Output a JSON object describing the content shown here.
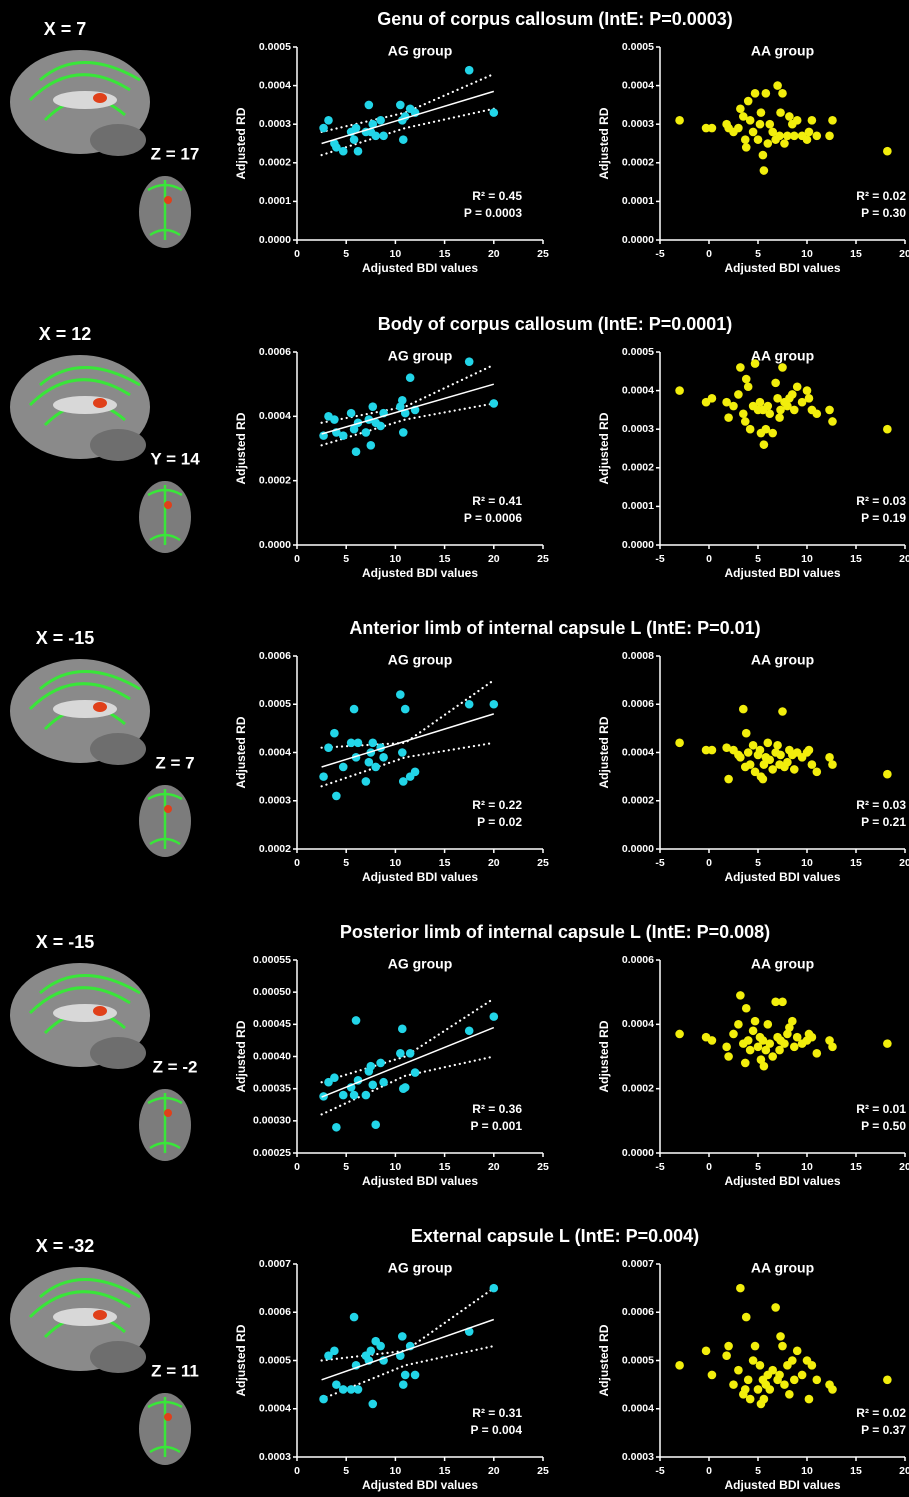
{
  "figure": {
    "rows": [
      {
        "title": "Genu of corpus callosum (IntE: P=0.0003)",
        "slices": [
          "X = 7",
          "Z = 17"
        ]
      },
      {
        "title": "Body of corpus callosum (IntE: P=0.0001)",
        "slices": [
          "X = 12",
          "Y = 14"
        ]
      },
      {
        "title": "Anterior limb of internal capsule L (IntE: P=0.01)",
        "slices": [
          "X = -15",
          "Z = 7"
        ]
      },
      {
        "title": "Posterior limb of internal capsule L (IntE: P=0.008)",
        "slices": [
          "X = -15",
          "Z = -2"
        ]
      },
      {
        "title": "External capsule L (IntE: P=0.004)",
        "slices": [
          "X = -32",
          "Z = 11"
        ]
      }
    ]
  },
  "chart_data": [
    {
      "type": "scatter",
      "title": "AG group",
      "x_label": "Adjusted BDI values",
      "y_label": "Adjusted RD",
      "color": "#22d5e8",
      "x": [
        2.7,
        3.2,
        3.8,
        4,
        4.7,
        5.5,
        5.8,
        6,
        6.2,
        7,
        7.3,
        7.5,
        7.7,
        8,
        8.5,
        8.8,
        10.5,
        10.7,
        10.8,
        11,
        11.5,
        12,
        17.5,
        20
      ],
      "values": [
        0.00029,
        0.00031,
        0.00025,
        0.00024,
        0.00023,
        0.00028,
        0.00026,
        0.00029,
        0.00023,
        0.00028,
        0.00035,
        0.00028,
        0.0003,
        0.00027,
        0.00031,
        0.00027,
        0.00035,
        0.00031,
        0.00026,
        0.00032,
        0.00034,
        0.00033,
        0.00044,
        0.00033
      ],
      "fit": {
        "x": [
          2.5,
          20
        ],
        "y": [
          0.00025,
          0.000385
        ]
      },
      "ci_upper": {
        "x": [
          2.5,
          11,
          20
        ],
        "y": [
          0.00028,
          0.00033,
          0.00043
        ]
      },
      "ci_lower": {
        "x": [
          2.5,
          11,
          20
        ],
        "y": [
          0.00022,
          0.00029,
          0.00034
        ]
      },
      "annotations": [
        "R² = 0.45",
        "P = 0.0003"
      ],
      "xlim": [
        0,
        25
      ],
      "xticks": [
        0,
        5,
        10,
        15,
        20,
        25
      ],
      "ylim": [
        0,
        0.0005
      ],
      "yticks": [
        {
          "value": 0,
          "label": "0.0000"
        },
        0.0001,
        0.0002,
        0.0003,
        0.0004,
        0.0005
      ]
    },
    {
      "type": "scatter",
      "title": "AA group",
      "x_label": "Adjusted BDI values",
      "y_label": "Adjusted RD",
      "color": "#f2ee0c",
      "x": [
        -3,
        -0.3,
        0.3,
        1.8,
        2,
        2.5,
        3,
        3.2,
        3.5,
        3.7,
        3.8,
        4,
        4.2,
        4.5,
        4.7,
        5,
        5.2,
        5.3,
        5.5,
        5.6,
        5.8,
        6,
        6.2,
        6.5,
        6.8,
        7,
        7.2,
        7.3,
        7.5,
        7.7,
        8,
        8.2,
        8.5,
        8.7,
        9,
        9.5,
        10,
        10.2,
        10.5,
        11,
        12.3,
        12.6,
        18.2
      ],
      "values": [
        0.00031,
        0.00029,
        0.00029,
        0.0003,
        0.00029,
        0.00028,
        0.00029,
        0.00034,
        0.00032,
        0.00026,
        0.00024,
        0.00036,
        0.00031,
        0.00028,
        0.00038,
        0.00026,
        0.0003,
        0.00033,
        0.00022,
        0.00018,
        0.00038,
        0.00025,
        0.0003,
        0.00028,
        0.00026,
        0.0004,
        0.00027,
        0.00033,
        0.00038,
        0.00025,
        0.00027,
        0.00032,
        0.0003,
        0.00027,
        0.00031,
        0.00027,
        0.00026,
        0.00028,
        0.00031,
        0.00027,
        0.00027,
        0.00031,
        0.00023
      ],
      "annotations": [
        "R² = 0.02",
        "P = 0.30"
      ],
      "xlim": [
        -5,
        20
      ],
      "xticks": [
        -5,
        0,
        5,
        10,
        15,
        20
      ],
      "ylim": [
        0,
        0.0005
      ],
      "yticks": [
        {
          "value": 0,
          "label": "0.0000"
        },
        0.0001,
        0.0002,
        0.0003,
        0.0004,
        0.0005
      ]
    },
    {
      "type": "scatter",
      "title": "AG group",
      "x_label": "Adjusted BDI values",
      "y_label": "Adjusted RD",
      "color": "#22d5e8",
      "x": [
        2.7,
        3.2,
        3.8,
        4,
        4.7,
        5.5,
        5.8,
        6,
        6.2,
        7,
        7.3,
        7.5,
        7.7,
        8,
        8.5,
        8.8,
        10.5,
        10.7,
        10.8,
        11,
        11.5,
        12,
        17.5,
        20
      ],
      "values": [
        0.00034,
        0.0004,
        0.00039,
        0.00035,
        0.00034,
        0.00041,
        0.00036,
        0.00029,
        0.00038,
        0.00035,
        0.00039,
        0.00031,
        0.00043,
        0.00038,
        0.00037,
        0.00041,
        0.00043,
        0.00045,
        0.00035,
        0.00041,
        0.00052,
        0.00042,
        0.00057,
        0.00044
      ],
      "fit": {
        "x": [
          2.5,
          20
        ],
        "y": [
          0.000345,
          0.0005
        ]
      },
      "ci_upper": {
        "x": [
          2.5,
          11,
          20
        ],
        "y": [
          0.00038,
          0.00043,
          0.00056
        ]
      },
      "ci_lower": {
        "x": [
          2.5,
          11,
          20
        ],
        "y": [
          0.00031,
          0.00039,
          0.00044
        ]
      },
      "annotations": [
        "R² = 0.41",
        "P = 0.0006"
      ],
      "xlim": [
        0,
        25
      ],
      "xticks": [
        0,
        5,
        10,
        15,
        20,
        25
      ],
      "ylim": [
        0,
        0.0006
      ],
      "yticks": [
        {
          "value": 0,
          "label": "0.0000"
        },
        0.0002,
        0.0004,
        0.0006
      ]
    },
    {
      "type": "scatter",
      "title": "AA group",
      "x_label": "Adjusted BDI values",
      "y_label": "Adjusted RD",
      "color": "#f2ee0c",
      "x": [
        -3,
        -0.3,
        0.3,
        1.8,
        2,
        2.5,
        3,
        3.2,
        3.5,
        3.7,
        3.8,
        4,
        4.2,
        4.5,
        4.7,
        5,
        5.2,
        5.3,
        5.5,
        5.6,
        5.8,
        6,
        6.2,
        6.5,
        6.8,
        7,
        7.2,
        7.3,
        7.5,
        7.7,
        8,
        8.2,
        8.5,
        8.7,
        9,
        9.5,
        10,
        10.2,
        10.5,
        11,
        12.3,
        12.6,
        18.2
      ],
      "values": [
        0.0004,
        0.00037,
        0.00038,
        0.00037,
        0.00033,
        0.00036,
        0.00039,
        0.00046,
        0.00034,
        0.00032,
        0.00043,
        0.00041,
        0.0003,
        0.00036,
        0.00047,
        0.00035,
        0.00037,
        0.00029,
        0.00035,
        0.00026,
        0.0003,
        0.00036,
        0.00034,
        0.00029,
        0.00042,
        0.00038,
        0.00033,
        0.00035,
        0.00046,
        0.00037,
        0.00036,
        0.00038,
        0.00039,
        0.00035,
        0.00041,
        0.00037,
        0.0004,
        0.00038,
        0.00035,
        0.00034,
        0.00035,
        0.00032,
        0.0003
      ],
      "annotations": [
        "R² = 0.03",
        "P = 0.19"
      ],
      "xlim": [
        -5,
        20
      ],
      "xticks": [
        -5,
        0,
        5,
        10,
        15,
        20
      ],
      "ylim": [
        0,
        0.0005
      ],
      "yticks": [
        {
          "value": 0,
          "label": "0.0000"
        },
        0.0001,
        0.0002,
        0.0003,
        0.0004,
        0.0005
      ]
    },
    {
      "type": "scatter",
      "title": "AG group",
      "x_label": "Adjusted BDI values",
      "y_label": "Adjusted RD",
      "color": "#22d5e8",
      "x": [
        2.7,
        3.2,
        3.8,
        4,
        4.7,
        5.5,
        5.8,
        6,
        6.2,
        7,
        7.3,
        7.5,
        7.7,
        8,
        8.5,
        8.8,
        10.5,
        10.7,
        10.8,
        11,
        11.5,
        12,
        17.5,
        20
      ],
      "values": [
        0.00035,
        0.00041,
        0.00044,
        0.00031,
        0.00037,
        0.00042,
        0.00049,
        0.00039,
        0.00042,
        0.00034,
        0.00038,
        0.0004,
        0.00042,
        0.00037,
        0.00041,
        0.00039,
        0.00052,
        0.0004,
        0.00034,
        0.00049,
        0.00035,
        0.00036,
        0.0005,
        0.0005
      ],
      "fit": {
        "x": [
          2.5,
          20
        ],
        "y": [
          0.00037,
          0.00048
        ]
      },
      "ci_upper": {
        "x": [
          2.5,
          11,
          20
        ],
        "y": [
          0.00041,
          0.00042,
          0.00055
        ]
      },
      "ci_lower": {
        "x": [
          2.5,
          11,
          20
        ],
        "y": [
          0.00033,
          0.00039,
          0.00042
        ]
      },
      "annotations": [
        "R² = 0.22",
        "P = 0.02"
      ],
      "xlim": [
        0,
        25
      ],
      "xticks": [
        0,
        5,
        10,
        15,
        20,
        25
      ],
      "ylim": [
        0.0002,
        0.0006
      ],
      "yticks": [
        0.0002,
        0.0003,
        0.0004,
        0.0005,
        0.0006
      ]
    },
    {
      "type": "scatter",
      "title": "AA group",
      "x_label": "Adjusted BDI values",
      "y_label": "Adjusted RD",
      "color": "#f2ee0c",
      "x": [
        -3,
        -0.3,
        0.3,
        1.8,
        2,
        2.5,
        3,
        3.2,
        3.5,
        3.7,
        3.8,
        4,
        4.2,
        4.5,
        4.7,
        5,
        5.2,
        5.3,
        5.5,
        5.6,
        5.8,
        6,
        6.2,
        6.5,
        6.8,
        7,
        7.2,
        7.3,
        7.5,
        7.7,
        8,
        8.2,
        8.5,
        8.7,
        9,
        9.5,
        10,
        10.2,
        10.5,
        11,
        12.3,
        12.6,
        18.2
      ],
      "values": [
        0.00044,
        0.00041,
        0.00041,
        0.00042,
        0.00029,
        0.00041,
        0.00039,
        0.00038,
        0.00058,
        0.00034,
        0.00048,
        0.0004,
        0.00035,
        0.00043,
        0.00032,
        0.00039,
        0.00041,
        0.0003,
        0.00029,
        0.00035,
        0.00038,
        0.00044,
        0.00037,
        0.00033,
        0.0004,
        0.00043,
        0.00035,
        0.00039,
        0.00057,
        0.00034,
        0.00036,
        0.00041,
        0.00039,
        0.00033,
        0.0004,
        0.00038,
        0.0004,
        0.00041,
        0.00035,
        0.00032,
        0.00038,
        0.00035,
        0.00031
      ],
      "annotations": [
        "R² = 0.03",
        "P = 0.21"
      ],
      "xlim": [
        -5,
        20
      ],
      "xticks": [
        -5,
        0,
        5,
        10,
        15,
        20
      ],
      "ylim": [
        0,
        0.0008
      ],
      "yticks": [
        {
          "value": 0,
          "label": "0.0000"
        },
        0.0002,
        0.0004,
        0.0006,
        0.0008
      ]
    },
    {
      "type": "scatter",
      "title": "AG group",
      "x_label": "Adjusted BDI values",
      "y_label": "Adjusted RD",
      "color": "#22d5e8",
      "x": [
        2.7,
        3.2,
        3.8,
        4,
        4.7,
        5.5,
        5.8,
        6,
        6.2,
        7,
        7.3,
        7.5,
        7.7,
        8,
        8.5,
        8.8,
        10.5,
        10.7,
        10.8,
        11,
        11.5,
        12,
        17.5,
        20
      ],
      "values": [
        0.000338,
        0.00036,
        0.000367,
        0.00029,
        0.00034,
        0.000352,
        0.00034,
        0.000456,
        0.000363,
        0.00034,
        0.000377,
        0.000385,
        0.000356,
        0.000294,
        0.00039,
        0.00036,
        0.000405,
        0.000443,
        0.00035,
        0.000352,
        0.000405,
        0.000375,
        0.00044,
        0.000462
      ],
      "fit": {
        "x": [
          2.5,
          20
        ],
        "y": [
          0.000337,
          0.000445
        ]
      },
      "ci_upper": {
        "x": [
          2.5,
          11,
          20
        ],
        "y": [
          0.00036,
          0.0004,
          0.00049
        ]
      },
      "ci_lower": {
        "x": [
          2.5,
          11,
          20
        ],
        "y": [
          0.00031,
          0.00037,
          0.0004
        ]
      },
      "annotations": [
        "R² = 0.36",
        "P = 0.001"
      ],
      "xlim": [
        0,
        25
      ],
      "xticks": [
        0,
        5,
        10,
        15,
        20,
        25
      ],
      "ylim": [
        0.00025,
        0.00055
      ],
      "yticks": [
        0.00025,
        {
          "value": 0.0003,
          "label": "0.00030"
        },
        0.00035,
        {
          "value": 0.0004,
          "label": "0.00040"
        },
        0.00045,
        {
          "value": 0.0005,
          "label": "0.00050"
        },
        0.00055
      ]
    },
    {
      "type": "scatter",
      "title": "AA group",
      "x_label": "Adjusted BDI values",
      "y_label": "Adjusted RD",
      "color": "#f2ee0c",
      "x": [
        -3,
        -0.3,
        0.3,
        1.8,
        2,
        2.5,
        3,
        3.2,
        3.5,
        3.7,
        3.8,
        4,
        4.2,
        4.5,
        4.7,
        5,
        5.2,
        5.3,
        5.5,
        5.6,
        5.8,
        6,
        6.2,
        6.5,
        6.8,
        7,
        7.2,
        7.3,
        7.5,
        7.7,
        8,
        8.2,
        8.5,
        8.7,
        9,
        9.5,
        10,
        10.2,
        10.5,
        11,
        12.3,
        12.6,
        18.2
      ],
      "values": [
        0.00037,
        0.00036,
        0.00035,
        0.00033,
        0.0003,
        0.00037,
        0.0004,
        0.00049,
        0.00034,
        0.00028,
        0.00045,
        0.00035,
        0.00032,
        0.00038,
        0.00041,
        0.00033,
        0.00036,
        0.00029,
        0.00035,
        0.00027,
        0.00032,
        0.0004,
        0.00034,
        0.0003,
        0.00047,
        0.00036,
        0.00032,
        0.00035,
        0.00047,
        0.00034,
        0.00037,
        0.00039,
        0.00041,
        0.00033,
        0.00036,
        0.00034,
        0.00035,
        0.00037,
        0.00036,
        0.00031,
        0.00035,
        0.00033,
        0.00034
      ],
      "annotations": [
        "R² = 0.01",
        "P = 0.50"
      ],
      "xlim": [
        -5,
        20
      ],
      "xticks": [
        -5,
        0,
        5,
        10,
        15,
        20
      ],
      "ylim": [
        0,
        0.0006
      ],
      "yticks": [
        {
          "value": 0,
          "label": "0.0000"
        },
        0.0002,
        0.0004,
        0.0006
      ]
    },
    {
      "type": "scatter",
      "title": "AG group",
      "x_label": "Adjusted BDI values",
      "y_label": "Adjusted RD",
      "color": "#22d5e8",
      "x": [
        2.7,
        3.2,
        3.8,
        4,
        4.7,
        5.5,
        5.8,
        6,
        6.2,
        7,
        7.3,
        7.5,
        7.7,
        8,
        8.5,
        8.8,
        10.5,
        10.7,
        10.8,
        11,
        11.5,
        12,
        17.5,
        20
      ],
      "values": [
        0.00042,
        0.00051,
        0.00052,
        0.00045,
        0.00044,
        0.00044,
        0.00059,
        0.00049,
        0.00044,
        0.00051,
        0.0005,
        0.00052,
        0.00041,
        0.00054,
        0.00053,
        0.0005,
        0.00051,
        0.00055,
        0.00045,
        0.00047,
        0.00053,
        0.00047,
        0.00056,
        0.00065
      ],
      "fit": {
        "x": [
          2.5,
          20
        ],
        "y": [
          0.00046,
          0.000585
        ]
      },
      "ci_upper": {
        "x": [
          2.5,
          11,
          20
        ],
        "y": [
          0.0005,
          0.00052,
          0.00065
        ]
      },
      "ci_lower": {
        "x": [
          2.5,
          11,
          20
        ],
        "y": [
          0.00042,
          0.00049,
          0.00053
        ]
      },
      "annotations": [
        "R² = 0.31",
        "P = 0.004"
      ],
      "xlim": [
        0,
        25
      ],
      "xticks": [
        0,
        5,
        10,
        15,
        20,
        25
      ],
      "ylim": [
        0.0003,
        0.0007
      ],
      "yticks": [
        0.0003,
        0.0004,
        0.0005,
        0.0006,
        0.0007
      ]
    },
    {
      "type": "scatter",
      "title": "AA group",
      "x_label": "Adjusted BDI values",
      "y_label": "Adjusted RD",
      "color": "#f2ee0c",
      "x": [
        -3,
        -0.3,
        0.3,
        1.8,
        2,
        2.5,
        3,
        3.2,
        3.5,
        3.7,
        3.8,
        4,
        4.2,
        4.5,
        4.7,
        5,
        5.2,
        5.3,
        5.5,
        5.6,
        5.8,
        6,
        6.2,
        6.5,
        6.8,
        7,
        7.2,
        7.3,
        7.5,
        7.7,
        8,
        8.2,
        8.5,
        8.7,
        9,
        9.5,
        10,
        10.2,
        10.5,
        11,
        12.3,
        12.6,
        18.2
      ],
      "values": [
        0.00049,
        0.00052,
        0.00047,
        0.00051,
        0.00053,
        0.00045,
        0.00048,
        0.00065,
        0.00043,
        0.00044,
        0.00059,
        0.00046,
        0.00042,
        0.0005,
        0.00053,
        0.00044,
        0.00049,
        0.00041,
        0.00046,
        0.00042,
        0.00045,
        0.00047,
        0.00044,
        0.00048,
        0.00061,
        0.00046,
        0.00047,
        0.00055,
        0.00053,
        0.00045,
        0.00049,
        0.00043,
        0.0005,
        0.00046,
        0.00052,
        0.00047,
        0.0005,
        0.00042,
        0.00049,
        0.00046,
        0.00045,
        0.00044,
        0.00046
      ],
      "annotations": [
        "R² = 0.02",
        "P = 0.37"
      ],
      "xlim": [
        -5,
        20
      ],
      "xticks": [
        -5,
        0,
        5,
        10,
        15,
        20
      ],
      "ylim": [
        0.0003,
        0.0007
      ],
      "yticks": [
        0.0003,
        0.0004,
        0.0005,
        0.0006,
        0.0007
      ]
    }
  ]
}
